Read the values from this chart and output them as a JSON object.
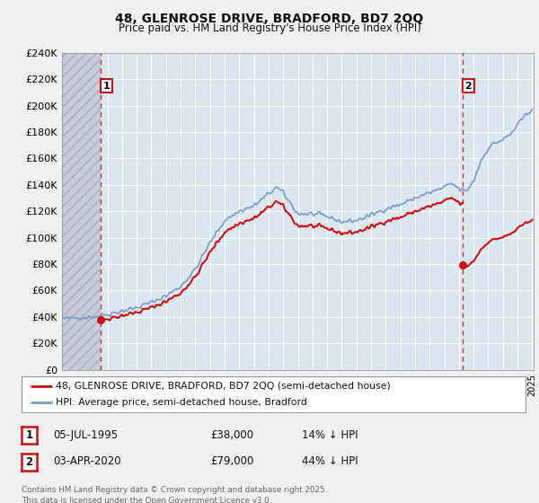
{
  "title": "48, GLENROSE DRIVE, BRADFORD, BD7 2QQ",
  "subtitle": "Price paid vs. HM Land Registry's House Price Index (HPI)",
  "background_color": "#f0f0f0",
  "plot_bg_color": "#dce6f0",
  "grid_color": "#ffffff",
  "hpi_color": "#7799cc",
  "price_color": "#cc1111",
  "legend_label1": "48, GLENROSE DRIVE, BRADFORD, BD7 2QQ (semi-detached house)",
  "legend_label2": "HPI: Average price, semi-detached house, Bradford",
  "table_row1": [
    "1",
    "05-JUL-1995",
    "£38,000",
    "14% ↓ HPI"
  ],
  "table_row2": [
    "2",
    "03-APR-2020",
    "£79,000",
    "44% ↓ HPI"
  ],
  "footnote": "Contains HM Land Registry data © Crown copyright and database right 2025.\nThis data is licensed under the Open Government Licence v3.0.",
  "ylim": [
    0,
    240000
  ],
  "ytick_step": 20000,
  "p1_year": 1995.5417,
  "p2_year": 2020.25,
  "p1_price": 38000,
  "p2_price": 79000
}
